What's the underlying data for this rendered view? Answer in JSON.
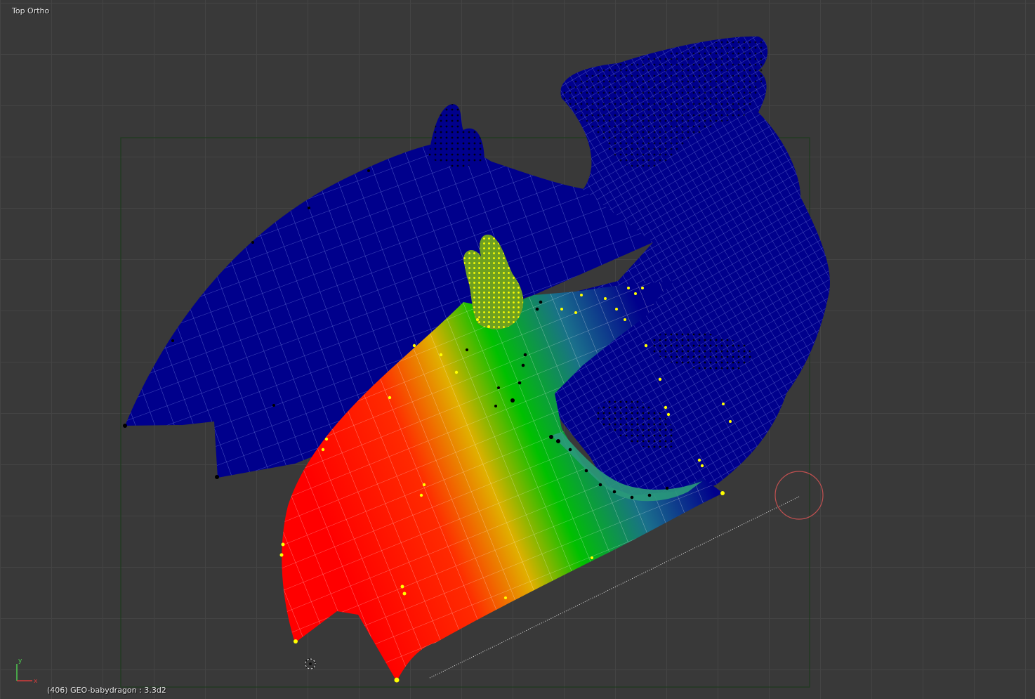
{
  "viewport": {
    "view_label": "Top Ortho",
    "object_info": "(406) GEO-babydragon : 3.3d2",
    "mode": "Weight Paint",
    "axes": {
      "x_label": "x",
      "y_label": "y",
      "x_color": "#d63c3c",
      "y_color": "#4fc84f"
    },
    "brush_cursor_color": "#c05050",
    "camera_frame_color": "#1e3a1e"
  },
  "weight_colors": {
    "zero": "#00008c",
    "low": "#1a4fa8",
    "mid_low": "#00c000",
    "mid": "#e0e000",
    "high": "#ff0000"
  },
  "vertex_colors": {
    "selected": "#ffff00",
    "unselected": "#000000"
  },
  "icons": [
    "axis-gizmo-icon",
    "3d-cursor-icon",
    "brush-cursor-icon"
  ]
}
